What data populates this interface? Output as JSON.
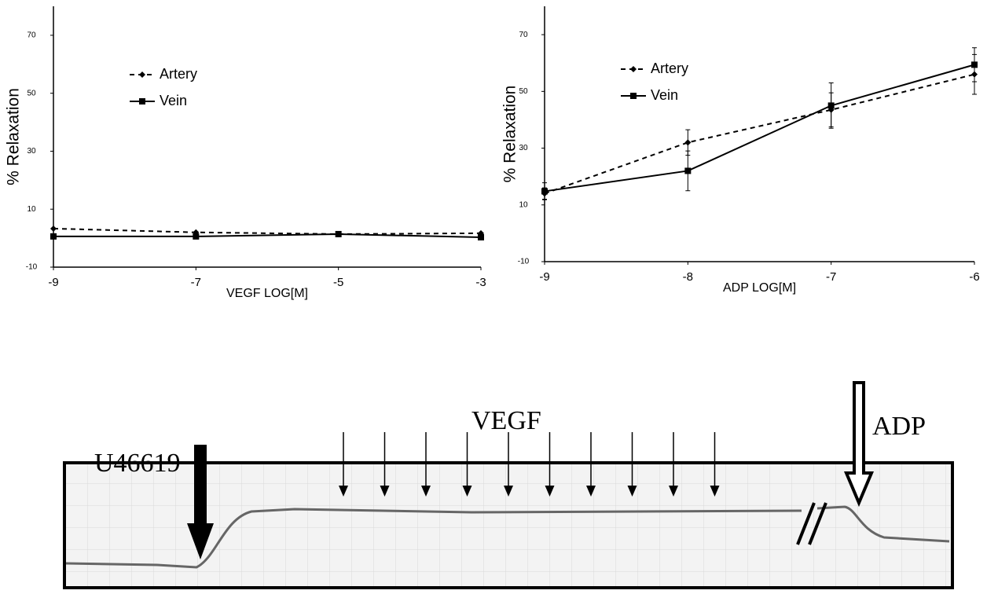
{
  "chart_data": [
    {
      "type": "line",
      "ylabel": "% Relaxation",
      "xlabel": "VEGF LOG[M]",
      "x": [
        -9,
        -7,
        -5,
        -3
      ],
      "xlim": [
        -9,
        -3
      ],
      "xticks": [
        -9,
        -7,
        -5,
        -3
      ],
      "ylim": [
        -10,
        80
      ],
      "yticks": [
        -10,
        10,
        30,
        50,
        70
      ],
      "series": [
        {
          "name": "Artery",
          "color": "#000000",
          "dash": true,
          "marker": "diamond",
          "values": [
            3.3,
            2,
            1.4,
            1.7
          ]
        },
        {
          "name": "Vein",
          "color": "#000000",
          "dash": false,
          "marker": "square",
          "values": [
            0.6,
            0.6,
            1.4,
            0.3
          ]
        }
      ]
    },
    {
      "type": "line",
      "ylabel": "% Relaxation",
      "xlabel": "ADP LOG[M]",
      "x": [
        -9,
        -8,
        -7,
        -6
      ],
      "xlim": [
        -9,
        -6
      ],
      "xticks": [
        -9,
        -8,
        -7,
        -6
      ],
      "ylim": [
        -10,
        80
      ],
      "yticks": [
        -10,
        10,
        30,
        50,
        70
      ],
      "series": [
        {
          "name": "Artery",
          "color": "#000000",
          "dash": true,
          "marker": "diamond",
          "values": [
            14,
            32,
            43.5,
            56
          ],
          "errors": [
            2,
            4.5,
            6,
            7
          ]
        },
        {
          "name": "Vein",
          "color": "#000000",
          "dash": false,
          "marker": "square",
          "values": [
            14.8,
            22,
            45,
            59.4
          ],
          "errors": [
            3,
            7,
            8,
            6
          ]
        }
      ]
    }
  ],
  "trace": {
    "agonist": "U46619",
    "test_drug": "VEGF",
    "control": "ADP"
  }
}
